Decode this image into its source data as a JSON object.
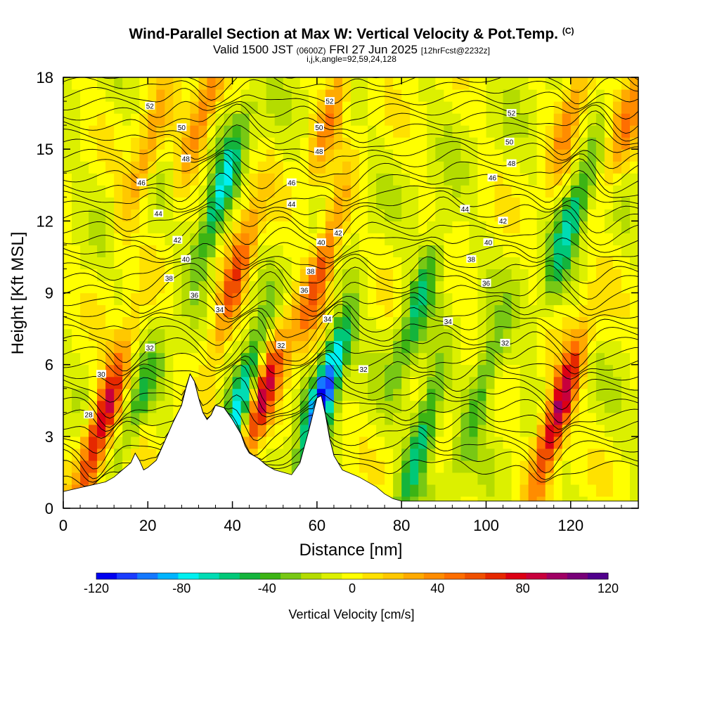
{
  "header": {
    "title": "Wind-Parallel Section at Max W: Vertical Velocity & Pot.Temp.",
    "copyright": "(C)",
    "valid_main": "Valid 1500 JST",
    "valid_small1": "(0600Z)",
    "valid_date": "FRI 27 Jun 2025",
    "valid_small2": "[12hrFcst@2232z]",
    "params": "i,j,k,angle=92,59,24,128"
  },
  "chart_data": {
    "type": "heatmap",
    "xlabel": "Distance [nm]",
    "ylabel": "Height [Kft MSL]",
    "xlim": [
      0,
      136
    ],
    "ylim": [
      0,
      18
    ],
    "x_ticks": [
      0,
      20,
      40,
      60,
      80,
      100,
      120
    ],
    "y_ticks": [
      0,
      3,
      6,
      9,
      12,
      15,
      18
    ],
    "colorbar": {
      "title": "Vertical Velocity [cm/s]",
      "min": -120,
      "max": 120,
      "step": 10,
      "tick_values": [
        -120,
        -80,
        -40,
        0,
        40,
        80,
        120
      ],
      "tick_labels": [
        "-120",
        "-80",
        "-40",
        "0",
        "40",
        "80",
        "120"
      ],
      "colors": [
        "#0000f0",
        "#1a3cff",
        "#1478ff",
        "#00b4ff",
        "#00f0f0",
        "#00dcb4",
        "#00c878",
        "#14b43c",
        "#3cb414",
        "#78c814",
        "#b4dc00",
        "#dcf000",
        "#ffff00",
        "#ffe100",
        "#ffc800",
        "#ffaa00",
        "#ff8c00",
        "#ff6e00",
        "#f05000",
        "#e62800",
        "#dc0014",
        "#c8003c",
        "#a00064",
        "#780078",
        "#50008c"
      ]
    },
    "terrain_profile": {
      "x": [
        0,
        5,
        10,
        12,
        14,
        16,
        17,
        18,
        19,
        20,
        22,
        24,
        26,
        28,
        29,
        30,
        31,
        32,
        33,
        34,
        35,
        36,
        38,
        40,
        42,
        43,
        44,
        46,
        48,
        50,
        52,
        54,
        56,
        58,
        59,
        60,
        61,
        62,
        63,
        64,
        66,
        70,
        74,
        76,
        78,
        80,
        136
      ],
      "z": [
        0.7,
        0.9,
        1.1,
        1.3,
        1.6,
        1.9,
        2.3,
        2.0,
        1.6,
        1.7,
        2.0,
        2.8,
        3.6,
        4.3,
        5.0,
        5.6,
        5.3,
        4.6,
        4.0,
        3.7,
        3.9,
        4.3,
        4.2,
        3.7,
        3.1,
        2.6,
        2.3,
        2.1,
        1.8,
        1.6,
        1.5,
        1.4,
        1.9,
        3.2,
        3.9,
        4.6,
        4.7,
        3.9,
        2.9,
        2.2,
        1.6,
        1.3,
        0.9,
        0.6,
        0.4,
        0.3,
        0.3
      ]
    },
    "updrafts": [
      {
        "x": 9.5,
        "z": 3.8,
        "w": 100
      },
      {
        "x": 16,
        "z": 2.5,
        "w": 45
      },
      {
        "x": 19,
        "z": 14.5,
        "w": 40
      },
      {
        "x": 33,
        "z": 16.5,
        "w": 50
      },
      {
        "x": 40.5,
        "z": 9.5,
        "w": 70
      },
      {
        "x": 47,
        "z": 4.5,
        "w": 90
      },
      {
        "x": 61,
        "z": 10,
        "w": 70
      },
      {
        "x": 64,
        "z": 17,
        "w": 45
      },
      {
        "x": 89,
        "z": 5,
        "w": 40
      },
      {
        "x": 117,
        "z": 4,
        "w": 110
      },
      {
        "x": 121,
        "z": 17,
        "w": 45
      },
      {
        "x": 133,
        "z": 16,
        "w": 40
      }
    ],
    "downdrafts": [
      {
        "x": 17,
        "z": 3.5,
        "w": -70
      },
      {
        "x": 37,
        "z": 13,
        "w": -70
      },
      {
        "x": 42,
        "z": 4.5,
        "w": -80
      },
      {
        "x": 62,
        "z": 5,
        "w": -110
      },
      {
        "x": 86,
        "z": 3.5,
        "w": -90
      },
      {
        "x": 84,
        "z": 8.5,
        "w": -50
      },
      {
        "x": 120,
        "z": 12,
        "w": -60
      },
      {
        "x": 99,
        "z": 5,
        "w": -40
      }
    ],
    "theta_labels": [
      {
        "value": "52",
        "x": 20.5,
        "z": 16.8
      },
      {
        "value": "50",
        "x": 28,
        "z": 15.9
      },
      {
        "value": "48",
        "x": 29,
        "z": 14.6
      },
      {
        "value": "46",
        "x": 18.5,
        "z": 13.6
      },
      {
        "value": "44",
        "x": 22.5,
        "z": 12.3
      },
      {
        "value": "42",
        "x": 27,
        "z": 11.2
      },
      {
        "value": "40",
        "x": 29,
        "z": 10.4
      },
      {
        "value": "38",
        "x": 25,
        "z": 9.6
      },
      {
        "value": "36",
        "x": 31,
        "z": 8.9
      },
      {
        "value": "34",
        "x": 37,
        "z": 8.3
      },
      {
        "value": "32",
        "x": 20.5,
        "z": 6.7
      },
      {
        "value": "30",
        "x": 9,
        "z": 5.6
      },
      {
        "value": "28",
        "x": 6,
        "z": 3.9
      },
      {
        "value": "52",
        "x": 63,
        "z": 17
      },
      {
        "value": "50",
        "x": 60.5,
        "z": 15.9
      },
      {
        "value": "48",
        "x": 60.5,
        "z": 14.9
      },
      {
        "value": "46",
        "x": 54,
        "z": 13.6
      },
      {
        "value": "44",
        "x": 54,
        "z": 12.7
      },
      {
        "value": "42",
        "x": 65,
        "z": 11.5
      },
      {
        "value": "40",
        "x": 61,
        "z": 11.1
      },
      {
        "value": "38",
        "x": 58.5,
        "z": 9.9
      },
      {
        "value": "36",
        "x": 57,
        "z": 9.1
      },
      {
        "value": "34",
        "x": 62.5,
        "z": 7.9
      },
      {
        "value": "32",
        "x": 51.5,
        "z": 6.8
      },
      {
        "value": "32",
        "x": 71,
        "z": 5.8
      },
      {
        "value": "52",
        "x": 106,
        "z": 16.5
      },
      {
        "value": "50",
        "x": 105.5,
        "z": 15.3
      },
      {
        "value": "48",
        "x": 106,
        "z": 14.4
      },
      {
        "value": "46",
        "x": 101.5,
        "z": 13.8
      },
      {
        "value": "44",
        "x": 95,
        "z": 12.5
      },
      {
        "value": "42",
        "x": 104,
        "z": 12.0
      },
      {
        "value": "40",
        "x": 100.5,
        "z": 11.1
      },
      {
        "value": "38",
        "x": 96.5,
        "z": 10.4
      },
      {
        "value": "36",
        "x": 100,
        "z": 9.4
      },
      {
        "value": "34",
        "x": 91,
        "z": 7.8
      },
      {
        "value": "32",
        "x": 104.5,
        "z": 6.9
      }
    ]
  }
}
